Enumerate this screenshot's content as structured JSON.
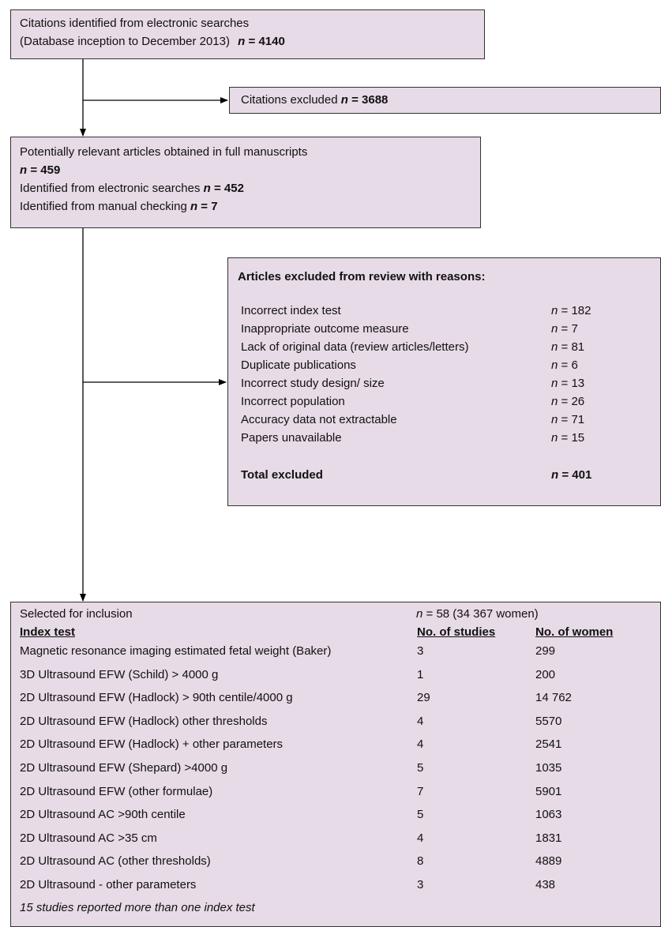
{
  "box1": {
    "line1": "Citations identified from electronic searches",
    "line2": "(Database inception to December 2013)",
    "n_label": "n",
    "n_eq": " = 4140"
  },
  "box2": {
    "label": "Citations excluded ",
    "n_label": "n",
    "n_eq": " = 3688"
  },
  "box3": {
    "line1": "Potentially relevant articles obtained in full manuscripts",
    "n_label": "n",
    "n_eq": " = 459",
    "line3": "Identified from electronic searches ",
    "line3_n": "n",
    "line3_eq": " = 452",
    "line4": "Identified from manual checking ",
    "line4_n": "n",
    "line4_eq": " = 7"
  },
  "box4": {
    "title": "Articles excluded from review with reasons:",
    "n_label": "n",
    "rows": [
      {
        "reason": "Incorrect index test",
        "value": " = 182"
      },
      {
        "reason": "Inappropriate outcome measure",
        "value": " = 7"
      },
      {
        "reason": "Lack of original data (review articles/letters)",
        "value": " = 81"
      },
      {
        "reason": "Duplicate publications",
        "value": " = 6"
      },
      {
        "reason": "Incorrect study design/ size",
        "value": " = 13"
      },
      {
        "reason": "Incorrect population",
        "value": " = 26"
      },
      {
        "reason": "Accuracy data not extractable",
        "value": " = 71"
      },
      {
        "reason": "Papers unavailable",
        "value": " = 15"
      }
    ],
    "total_label": "Total excluded",
    "total_value": " = 401"
  },
  "box5": {
    "selected_label": "Selected for inclusion",
    "selected_n": "n",
    "selected_value": " = 58  (34 367 women)",
    "col_index": "Index test",
    "col_studies": "No. of studies",
    "col_women": "No. of women",
    "rows": [
      {
        "test": "Magnetic resonance imaging estimated fetal weight (Baker)",
        "studies": "3",
        "women": "299"
      },
      {
        "test": "3D Ultrasound EFW (Schild) > 4000 g",
        "studies": "1",
        "women": "200"
      },
      {
        "test": "2D Ultrasound EFW (Hadlock) > 90th centile/4000 g",
        "studies": "29",
        "women": "14 762"
      },
      {
        "test": "2D Ultrasound EFW (Hadlock) other thresholds",
        "studies": "4",
        "women": "5570"
      },
      {
        "test": "2D Ultrasound EFW (Hadlock) + other parameters",
        "studies": "4",
        "women": "2541"
      },
      {
        "test": "2D Ultrasound EFW (Shepard) >4000 g",
        "studies": "5",
        "women": "1035"
      },
      {
        "test": "2D Ultrasound EFW (other formulae)",
        "studies": "7",
        "women": "5901"
      },
      {
        "test": "2D Ultrasound AC >90th centile",
        "studies": "5",
        "women": "1063"
      },
      {
        "test": "2D Ultrasound AC >35 cm",
        "studies": "4",
        "women": "1831"
      },
      {
        "test": "2D Ultrasound AC (other thresholds)",
        "studies": "8",
        "women": "4889"
      },
      {
        "test": "2D Ultrasound - other parameters",
        "studies": "3",
        "women": "438"
      }
    ],
    "footnote": "15 studies reported more than one index test"
  }
}
